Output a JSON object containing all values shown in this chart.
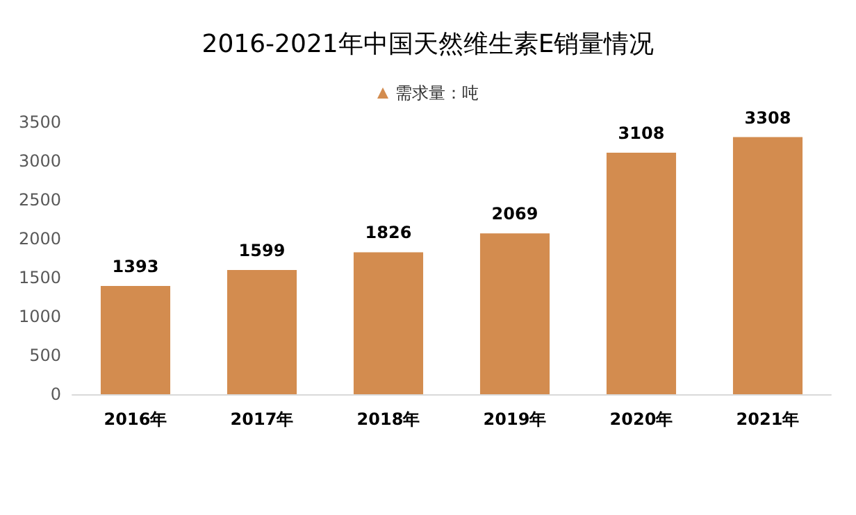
{
  "chart_data": {
    "type": "bar",
    "title": "2016-2021年中国天然维生素E销量情况",
    "categories": [
      "2016年",
      "2017年",
      "2018年",
      "2019年",
      "2020年",
      "2021年"
    ],
    "series": [
      {
        "name": "需求量：吨",
        "color": "#d38c4f",
        "values": [
          1393,
          1599,
          1826,
          2069,
          3108,
          3308
        ]
      }
    ],
    "ylim": [
      0,
      3500
    ],
    "yticks": [
      0,
      500,
      1000,
      1500,
      2000,
      2500,
      3000,
      3500
    ],
    "grid": false,
    "legend": "top",
    "data_labels": true
  }
}
